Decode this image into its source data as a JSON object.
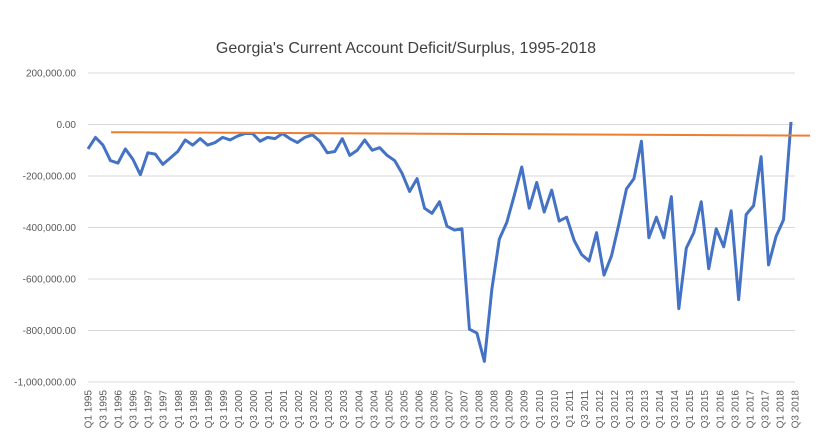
{
  "chart_data": {
    "type": "line",
    "title": "Georgia's Current Account Deficit/Surplus, 1995-2018",
    "xlabel": "",
    "ylabel": "",
    "ylim": [
      -1000000,
      200000
    ],
    "yticks": [
      200000,
      0,
      -200000,
      -400000,
      -600000,
      -800000,
      -1000000
    ],
    "ytick_labels": [
      "200,000.00",
      "0.00",
      "-200,000.00",
      "-400,000.00",
      "-600,000.00",
      "-800,000.00",
      "-1,000,000.00"
    ],
    "grid": true,
    "legend": "none",
    "x_labels": [
      "Q1 1995",
      "Q3 1995",
      "Q1 1996",
      "Q3 1996",
      "Q1 1997",
      "Q3 1997",
      "Q1 1998",
      "Q3 1998",
      "Q1 1999",
      "Q3 1999",
      "Q1 2000",
      "Q3 2000",
      "Q1 2001",
      "Q3 2001",
      "Q1 2002",
      "Q3 2002",
      "Q1 2003",
      "Q3 2003",
      "Q1 2004",
      "Q3 2004",
      "Q1 2005",
      "Q3 2005",
      "Q1 2006",
      "Q3 2006",
      "Q1 2007",
      "Q3 2007",
      "Q1 2008",
      "Q3 2008",
      "Q1 2009",
      "Q3 2009",
      "Q1 2010",
      "Q3 2010",
      "Q1 2011",
      "Q3 2011",
      "Q1 2012",
      "Q3 2012",
      "Q1 2013",
      "Q3 2013",
      "Q1 2014",
      "Q3 2014",
      "Q1 2015",
      "Q3 2015",
      "Q1 2016",
      "Q3 2016",
      "Q1 2017",
      "Q3 2017",
      "Q1 2018",
      "Q3 2018"
    ],
    "series": [
      {
        "color": "#4472c4",
        "values": [
          -95000,
          -50000,
          -80000,
          -140000,
          -150000,
          -95000,
          -135000,
          -195000,
          -110000,
          -115000,
          -155000,
          -130000,
          -105000,
          -60000,
          -80000,
          -55000,
          -80000,
          -70000,
          -50000,
          -60000,
          -45000,
          -35000,
          -35000,
          -65000,
          -50000,
          -55000,
          -35000,
          -55000,
          -70000,
          -50000,
          -40000,
          -65000,
          -110000,
          -105000,
          -55000,
          -120000,
          -100000,
          -60000,
          -100000,
          -90000,
          -120000,
          -140000,
          -190000,
          -260000,
          -210000,
          -325000,
          -345000,
          -300000,
          -395000,
          -410000,
          -405000,
          -795000,
          -810000,
          -920000,
          -640000,
          -445000,
          -380000,
          -275000,
          -165000,
          -325000,
          -225000,
          -340000,
          -255000,
          -375000,
          -360000,
          -450000,
          -505000,
          -530000,
          -420000,
          -585000,
          -510000,
          -385000,
          -250000,
          -210000,
          -65000,
          -440000,
          -360000,
          -440000,
          -280000,
          -715000,
          -480000,
          -420000,
          -300000,
          -560000,
          -405000,
          -475000,
          -335000,
          -680000,
          -350000,
          -315000,
          -125000,
          -545000,
          -435000,
          -370000,
          10000
        ]
      },
      {
        "color": "#ed7d31",
        "values": [
          -30000,
          -43000
        ]
      }
    ]
  }
}
